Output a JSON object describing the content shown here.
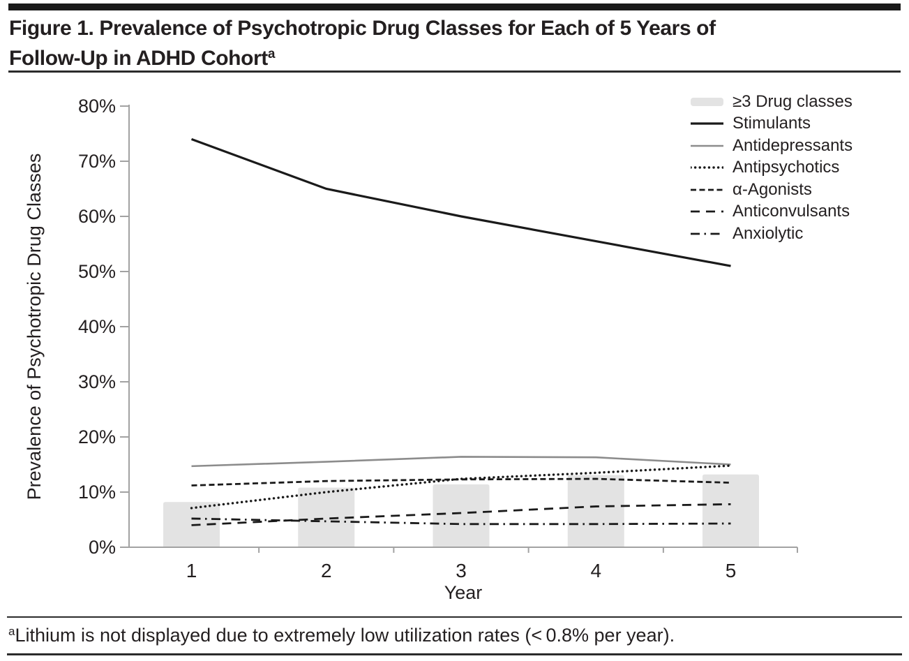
{
  "header": {
    "title_line1": "Figure 1. Prevalence of Psychotropic Drug Classes for Each of 5 Years of",
    "title_line2": "Follow-Up in ADHD Cohort",
    "title_superscript": "a"
  },
  "chart_data": {
    "type": "mixed-bar-line",
    "title": "",
    "xlabel": "Year",
    "ylabel": "Prevalence of Psychotropic Drug Classes",
    "categories": [
      "1",
      "2",
      "3",
      "4",
      "5"
    ],
    "ylim": [
      0,
      80
    ],
    "ytick_step": 10,
    "yticks": [
      "0%",
      "10%",
      "20%",
      "30%",
      "40%",
      "50%",
      "60%",
      "70%",
      "80%"
    ],
    "grid": false,
    "legend_position": "top-right",
    "series": [
      {
        "name": "≥3 Drug classes",
        "type": "bar",
        "style": "bar-swatch",
        "color": "#e3e3e3",
        "values": [
          8.2,
          10.8,
          11.4,
          13.1,
          13.2
        ]
      },
      {
        "name": "Stimulants",
        "type": "line",
        "style": "solid",
        "color": "#1a1a1a",
        "values": [
          74,
          65,
          60,
          55.5,
          51
        ]
      },
      {
        "name": "Antidepressants",
        "type": "line",
        "style": "solid-thin",
        "color": "#8c8c8c",
        "values": [
          14.7,
          15.5,
          16.4,
          16.3,
          15
        ]
      },
      {
        "name": "Antipsychotics",
        "type": "line",
        "style": "dotted",
        "color": "#1a1a1a",
        "values": [
          7.1,
          10,
          12.4,
          13.5,
          14.8
        ]
      },
      {
        "name": "α-Agonists",
        "type": "line",
        "style": "fine-dash",
        "color": "#1a1a1a",
        "values": [
          11.2,
          12,
          12.3,
          12.4,
          11.7
        ]
      },
      {
        "name": "Anticonvulsants",
        "type": "line",
        "style": "dash",
        "color": "#1a1a1a",
        "values": [
          4,
          5.2,
          6.2,
          7.4,
          7.8
        ]
      },
      {
        "name": "Anxiolytic",
        "type": "line",
        "style": "dash-dot",
        "color": "#1a1a1a",
        "values": [
          5.2,
          4.7,
          4.2,
          4.2,
          4.3
        ]
      }
    ],
    "colors": {
      "axis": "#a2a2a2",
      "text": "#231f20",
      "bar_fill": "#e3e3e3"
    }
  },
  "footnote": {
    "superscript": "a",
    "text": "Lithium is not displayed due to extremely low utilization rates (< 0.8% per year)."
  }
}
